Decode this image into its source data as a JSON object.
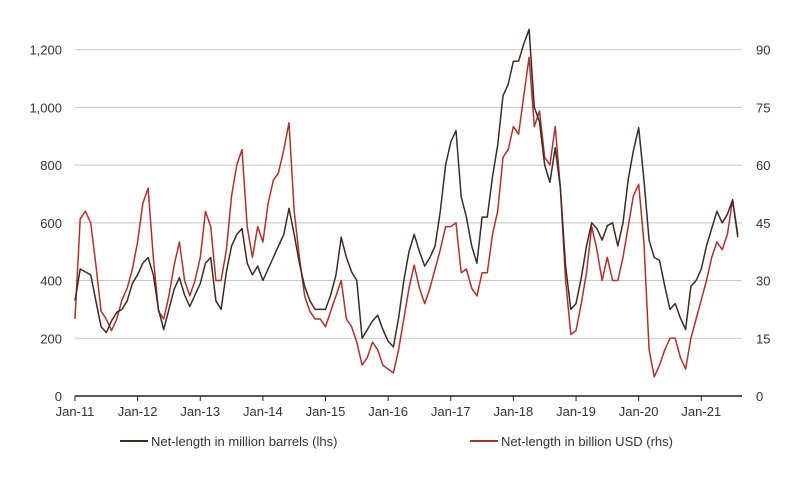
{
  "chart_data": {
    "type": "line",
    "title": "",
    "xlabel": "",
    "ylabel": "",
    "x_tick_labels": [
      "Jan-11",
      "Jan-12",
      "Jan-13",
      "Jan-14",
      "Jan-15",
      "Jan-16",
      "Jan-17",
      "Jan-18",
      "Jan-19",
      "Jan-20",
      "Jan-21"
    ],
    "y_left": {
      "ticks": [
        "0",
        "200",
        "400",
        "600",
        "800",
        "1,000",
        "1,200"
      ],
      "range": [
        0,
        1275
      ]
    },
    "y_right": {
      "ticks": [
        "0",
        "15",
        "30",
        "45",
        "60",
        "75",
        "90"
      ],
      "range": [
        0,
        95.6
      ]
    },
    "grid": true,
    "legend_position": "bottom",
    "colors": {
      "barrels": "#3d2b22",
      "usd": "#b5302a",
      "grid": "#c8c8c8",
      "axis": "#222222"
    },
    "series": [
      {
        "name": "Net-length in million barrels (lhs)",
        "axis": "left",
        "points": [
          [
            "2011-01",
            330
          ],
          [
            "2011-02",
            440
          ],
          [
            "2011-03",
            430
          ],
          [
            "2011-04",
            420
          ],
          [
            "2011-05",
            330
          ],
          [
            "2011-06",
            240
          ],
          [
            "2011-07",
            220
          ],
          [
            "2011-08",
            260
          ],
          [
            "2011-09",
            290
          ],
          [
            "2011-10",
            300
          ],
          [
            "2011-11",
            330
          ],
          [
            "2011-12",
            390
          ],
          [
            "2012-01",
            420
          ],
          [
            "2012-02",
            460
          ],
          [
            "2012-03",
            480
          ],
          [
            "2012-04",
            420
          ],
          [
            "2012-05",
            300
          ],
          [
            "2012-06",
            230
          ],
          [
            "2012-07",
            300
          ],
          [
            "2012-08",
            370
          ],
          [
            "2012-09",
            410
          ],
          [
            "2012-10",
            350
          ],
          [
            "2012-11",
            310
          ],
          [
            "2012-12",
            350
          ],
          [
            "2013-01",
            390
          ],
          [
            "2013-02",
            460
          ],
          [
            "2013-03",
            480
          ],
          [
            "2013-04",
            330
          ],
          [
            "2013-05",
            300
          ],
          [
            "2013-06",
            430
          ],
          [
            "2013-07",
            520
          ],
          [
            "2013-08",
            560
          ],
          [
            "2013-09",
            580
          ],
          [
            "2013-10",
            460
          ],
          [
            "2013-11",
            420
          ],
          [
            "2013-12",
            450
          ],
          [
            "2014-01",
            400
          ],
          [
            "2014-02",
            440
          ],
          [
            "2014-03",
            480
          ],
          [
            "2014-04",
            520
          ],
          [
            "2014-05",
            560
          ],
          [
            "2014-06",
            650
          ],
          [
            "2014-07",
            560
          ],
          [
            "2014-08",
            460
          ],
          [
            "2014-09",
            380
          ],
          [
            "2014-10",
            330
          ],
          [
            "2014-11",
            300
          ],
          [
            "2014-12",
            300
          ],
          [
            "2015-01",
            300
          ],
          [
            "2015-02",
            350
          ],
          [
            "2015-03",
            420
          ],
          [
            "2015-04",
            550
          ],
          [
            "2015-05",
            480
          ],
          [
            "2015-06",
            430
          ],
          [
            "2015-07",
            400
          ],
          [
            "2015-08",
            200
          ],
          [
            "2015-09",
            230
          ],
          [
            "2015-10",
            260
          ],
          [
            "2015-11",
            280
          ],
          [
            "2015-12",
            230
          ],
          [
            "2016-01",
            190
          ],
          [
            "2016-02",
            170
          ],
          [
            "2016-03",
            270
          ],
          [
            "2016-04",
            400
          ],
          [
            "2016-05",
            500
          ],
          [
            "2016-06",
            560
          ],
          [
            "2016-07",
            500
          ],
          [
            "2016-08",
            450
          ],
          [
            "2016-09",
            480
          ],
          [
            "2016-10",
            520
          ],
          [
            "2016-11",
            640
          ],
          [
            "2016-12",
            800
          ],
          [
            "2017-01",
            880
          ],
          [
            "2017-02",
            920
          ],
          [
            "2017-03",
            690
          ],
          [
            "2017-04",
            620
          ],
          [
            "2017-05",
            520
          ],
          [
            "2017-06",
            460
          ],
          [
            "2017-07",
            620
          ],
          [
            "2017-08",
            620
          ],
          [
            "2017-09",
            760
          ],
          [
            "2017-10",
            870
          ],
          [
            "2017-11",
            1040
          ],
          [
            "2017-12",
            1080
          ],
          [
            "2018-01",
            1160
          ],
          [
            "2018-02",
            1160
          ],
          [
            "2018-03",
            1220
          ],
          [
            "2018-04",
            1270
          ],
          [
            "2018-05",
            1000
          ],
          [
            "2018-06",
            950
          ],
          [
            "2018-07",
            800
          ],
          [
            "2018-08",
            740
          ],
          [
            "2018-09",
            860
          ],
          [
            "2018-10",
            720
          ],
          [
            "2018-11",
            450
          ],
          [
            "2018-12",
            300
          ],
          [
            "2019-01",
            320
          ],
          [
            "2019-02",
            410
          ],
          [
            "2019-03",
            520
          ],
          [
            "2019-04",
            600
          ],
          [
            "2019-05",
            580
          ],
          [
            "2019-06",
            540
          ],
          [
            "2019-07",
            590
          ],
          [
            "2019-08",
            600
          ],
          [
            "2019-09",
            520
          ],
          [
            "2019-10",
            600
          ],
          [
            "2019-11",
            750
          ],
          [
            "2019-12",
            850
          ],
          [
            "2020-01",
            930
          ],
          [
            "2020-02",
            750
          ],
          [
            "2020-03",
            540
          ],
          [
            "2020-04",
            480
          ],
          [
            "2020-05",
            470
          ],
          [
            "2020-06",
            380
          ],
          [
            "2020-07",
            300
          ],
          [
            "2020-08",
            320
          ],
          [
            "2020-09",
            270
          ],
          [
            "2020-10",
            230
          ],
          [
            "2020-11",
            380
          ],
          [
            "2020-12",
            400
          ],
          [
            "2021-01",
            440
          ],
          [
            "2021-02",
            520
          ],
          [
            "2021-03",
            580
          ],
          [
            "2021-04",
            640
          ],
          [
            "2021-05",
            600
          ],
          [
            "2021-06",
            630
          ],
          [
            "2021-07",
            680
          ],
          [
            "2021-08",
            550
          ]
        ]
      },
      {
        "name": "Net-length in billion USD (rhs)",
        "axis": "right",
        "points": [
          [
            "2011-01",
            20
          ],
          [
            "2011-02",
            46
          ],
          [
            "2011-03",
            48
          ],
          [
            "2011-04",
            45
          ],
          [
            "2011-05",
            34
          ],
          [
            "2011-06",
            22
          ],
          [
            "2011-07",
            20
          ],
          [
            "2011-08",
            17
          ],
          [
            "2011-09",
            20
          ],
          [
            "2011-10",
            25
          ],
          [
            "2011-11",
            28
          ],
          [
            "2011-12",
            33
          ],
          [
            "2012-01",
            40
          ],
          [
            "2012-02",
            50
          ],
          [
            "2012-03",
            54
          ],
          [
            "2012-04",
            36
          ],
          [
            "2012-05",
            22
          ],
          [
            "2012-06",
            20
          ],
          [
            "2012-07",
            26
          ],
          [
            "2012-08",
            34
          ],
          [
            "2012-09",
            40
          ],
          [
            "2012-10",
            30
          ],
          [
            "2012-11",
            26
          ],
          [
            "2012-12",
            30
          ],
          [
            "2013-01",
            36
          ],
          [
            "2013-02",
            48
          ],
          [
            "2013-03",
            44
          ],
          [
            "2013-04",
            30
          ],
          [
            "2013-05",
            30
          ],
          [
            "2013-06",
            38
          ],
          [
            "2013-07",
            52
          ],
          [
            "2013-08",
            60
          ],
          [
            "2013-09",
            64
          ],
          [
            "2013-10",
            44
          ],
          [
            "2013-11",
            36
          ],
          [
            "2013-12",
            44
          ],
          [
            "2014-01",
            40
          ],
          [
            "2014-02",
            50
          ],
          [
            "2014-03",
            56
          ],
          [
            "2014-04",
            58
          ],
          [
            "2014-05",
            64
          ],
          [
            "2014-06",
            71
          ],
          [
            "2014-07",
            48
          ],
          [
            "2014-08",
            36
          ],
          [
            "2014-09",
            26
          ],
          [
            "2014-10",
            22
          ],
          [
            "2014-11",
            20
          ],
          [
            "2014-12",
            20
          ],
          [
            "2015-01",
            18
          ],
          [
            "2015-02",
            22
          ],
          [
            "2015-03",
            26
          ],
          [
            "2015-04",
            30
          ],
          [
            "2015-05",
            20
          ],
          [
            "2015-06",
            18
          ],
          [
            "2015-07",
            14
          ],
          [
            "2015-08",
            8
          ],
          [
            "2015-09",
            10
          ],
          [
            "2015-10",
            14
          ],
          [
            "2015-11",
            12
          ],
          [
            "2015-12",
            8
          ],
          [
            "2016-01",
            7
          ],
          [
            "2016-02",
            6
          ],
          [
            "2016-03",
            12
          ],
          [
            "2016-04",
            20
          ],
          [
            "2016-05",
            28
          ],
          [
            "2016-06",
            34
          ],
          [
            "2016-07",
            28
          ],
          [
            "2016-08",
            24
          ],
          [
            "2016-09",
            28
          ],
          [
            "2016-10",
            33
          ],
          [
            "2016-11",
            38
          ],
          [
            "2016-12",
            44
          ],
          [
            "2017-01",
            44
          ],
          [
            "2017-02",
            45
          ],
          [
            "2017-03",
            32
          ],
          [
            "2017-04",
            33
          ],
          [
            "2017-05",
            28
          ],
          [
            "2017-06",
            26
          ],
          [
            "2017-07",
            32
          ],
          [
            "2017-08",
            32
          ],
          [
            "2017-09",
            42
          ],
          [
            "2017-10",
            48
          ],
          [
            "2017-11",
            62
          ],
          [
            "2017-12",
            64
          ],
          [
            "2018-01",
            70
          ],
          [
            "2018-02",
            68
          ],
          [
            "2018-03",
            78
          ],
          [
            "2018-04",
            88
          ],
          [
            "2018-05",
            70
          ],
          [
            "2018-06",
            74
          ],
          [
            "2018-07",
            62
          ],
          [
            "2018-08",
            60
          ],
          [
            "2018-09",
            70
          ],
          [
            "2018-10",
            54
          ],
          [
            "2018-11",
            30
          ],
          [
            "2018-12",
            16
          ],
          [
            "2019-01",
            17
          ],
          [
            "2019-02",
            24
          ],
          [
            "2019-03",
            32
          ],
          [
            "2019-04",
            44
          ],
          [
            "2019-05",
            38
          ],
          [
            "2019-06",
            30
          ],
          [
            "2019-07",
            36
          ],
          [
            "2019-08",
            30
          ],
          [
            "2019-09",
            30
          ],
          [
            "2019-10",
            36
          ],
          [
            "2019-11",
            44
          ],
          [
            "2019-12",
            52
          ],
          [
            "2020-01",
            55
          ],
          [
            "2020-02",
            40
          ],
          [
            "2020-03",
            12
          ],
          [
            "2020-04",
            5
          ],
          [
            "2020-05",
            8
          ],
          [
            "2020-06",
            12
          ],
          [
            "2020-07",
            15
          ],
          [
            "2020-08",
            15
          ],
          [
            "2020-09",
            10
          ],
          [
            "2020-10",
            7
          ],
          [
            "2020-11",
            15
          ],
          [
            "2020-12",
            20
          ],
          [
            "2021-01",
            25
          ],
          [
            "2021-02",
            30
          ],
          [
            "2021-03",
            36
          ],
          [
            "2021-04",
            40
          ],
          [
            "2021-05",
            38
          ],
          [
            "2021-06",
            42
          ],
          [
            "2021-07",
            51
          ],
          [
            "2021-08",
            42
          ]
        ]
      }
    ]
  }
}
